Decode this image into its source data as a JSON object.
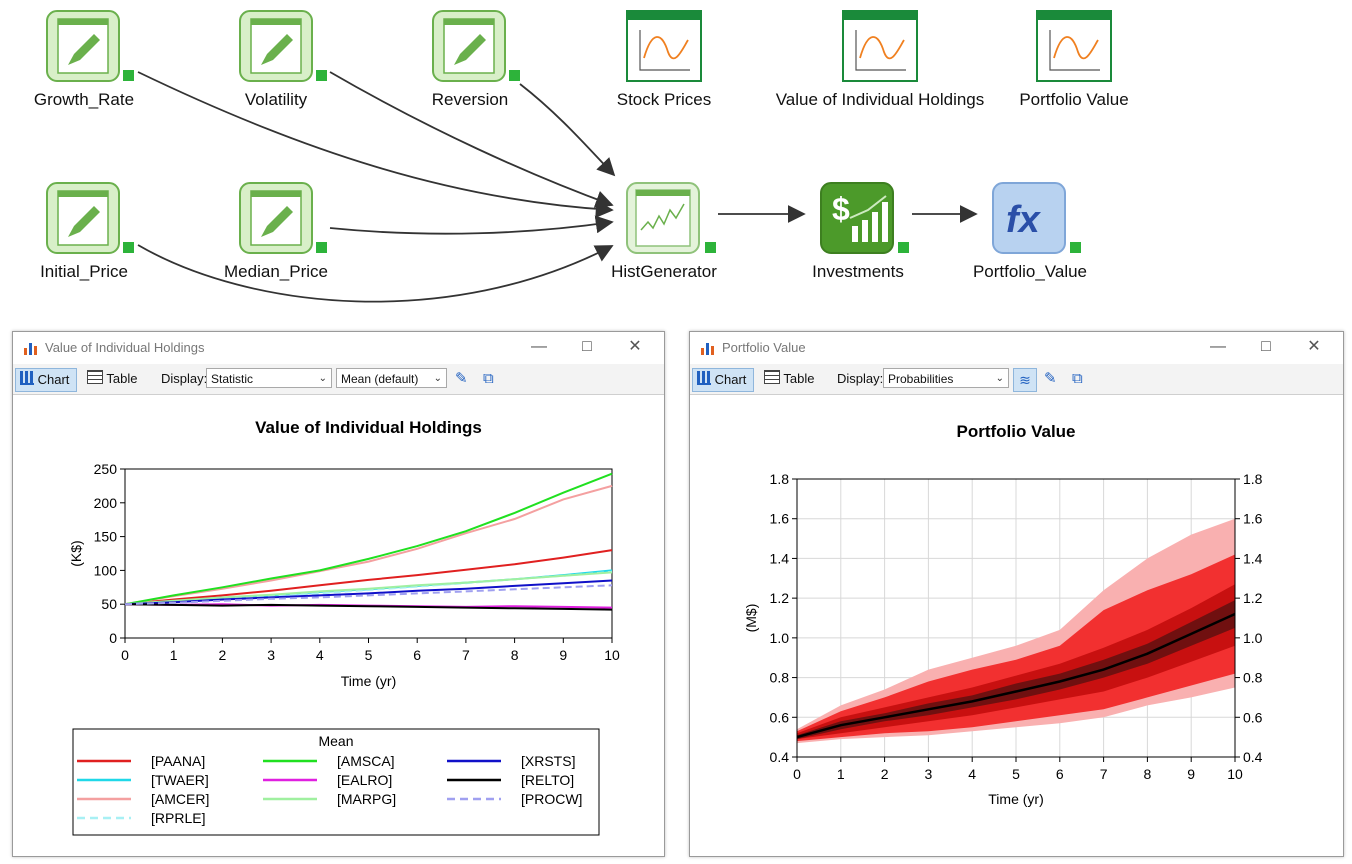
{
  "diagram": {
    "nodes": [
      {
        "id": "growth_rate",
        "label": "Growth_Rate",
        "kind": "input"
      },
      {
        "id": "volatility",
        "label": "Volatility",
        "kind": "input"
      },
      {
        "id": "reversion",
        "label": "Reversion",
        "kind": "input"
      },
      {
        "id": "stock_prices",
        "label": "Stock Prices",
        "kind": "chart"
      },
      {
        "id": "value_holdings",
        "label": "Value of Individual Holdings",
        "kind": "chart"
      },
      {
        "id": "portfolio_value_chart",
        "label": "Portfolio Value",
        "kind": "chart"
      },
      {
        "id": "initial_price",
        "label": "Initial_Price",
        "kind": "input"
      },
      {
        "id": "median_price",
        "label": "Median_Price",
        "kind": "input"
      },
      {
        "id": "histgenerator",
        "label": "HistGenerator",
        "kind": "generator"
      },
      {
        "id": "investments",
        "label": "Investments",
        "kind": "finance"
      },
      {
        "id": "portfolio_value",
        "label": "Portfolio_Value",
        "kind": "function"
      }
    ]
  },
  "left_window": {
    "title": "Value of Individual Holdings",
    "chart_button": "Chart",
    "table_button": "Table",
    "display_label": "Display:",
    "display_value": "Statistic",
    "stat_value": "Mean (default)"
  },
  "right_window": {
    "title": "Portfolio Value",
    "chart_button": "Chart",
    "table_button": "Table",
    "display_label": "Display:",
    "display_value": "Probabilities"
  },
  "colors": {
    "node_green": "#6ab04c",
    "chart_green": "#1a8a3a",
    "fx_blue": "#a9c8ec",
    "toolbar_active": "#cfe3f5"
  },
  "chart_data": [
    {
      "type": "line",
      "title": "Value of Individual Holdings",
      "xlabel": "Time (yr)",
      "ylabel": "(K$)",
      "xlim": [
        0,
        10
      ],
      "ylim": [
        0,
        250
      ],
      "xticks": [
        "0",
        "1",
        "2",
        "3",
        "4",
        "5",
        "6",
        "7",
        "8",
        "9",
        "10"
      ],
      "yticks": [
        "0",
        "50",
        "100",
        "150",
        "200",
        "250"
      ],
      "grid": false,
      "legend_title": "Mean",
      "legend_position": "bottom",
      "x": [
        0,
        1,
        2,
        3,
        4,
        5,
        6,
        7,
        8,
        9,
        10
      ],
      "series": [
        {
          "name": "[PAANA]",
          "color": "#e02020",
          "dash": false,
          "values": [
            50,
            57,
            63,
            70,
            78,
            86,
            93,
            101,
            109,
            119,
            130
          ]
        },
        {
          "name": "[TWAER]",
          "color": "#20d8e8",
          "dash": false,
          "values": [
            50,
            54,
            59,
            63,
            68,
            72,
            77,
            82,
            87,
            93,
            100
          ]
        },
        {
          "name": "[AMCER]",
          "color": "#f4a0a0",
          "dash": false,
          "values": [
            50,
            62,
            73,
            85,
            99,
            113,
            132,
            155,
            176,
            205,
            225
          ]
        },
        {
          "name": "[RPRLE]",
          "color": "#a8f0f4",
          "dash": true,
          "values": [
            50,
            54,
            58,
            62,
            66,
            71,
            76,
            81,
            87,
            92,
            98
          ]
        },
        {
          "name": "[AMSCA]",
          "color": "#20e020",
          "dash": false,
          "values": [
            50,
            63,
            75,
            88,
            100,
            117,
            136,
            158,
            185,
            215,
            243
          ]
        },
        {
          "name": "[EALRO]",
          "color": "#e020e0",
          "dash": false,
          "values": [
            50,
            49,
            50,
            48,
            49,
            48,
            47,
            46,
            47,
            46,
            45
          ]
        },
        {
          "name": "[MARPG]",
          "color": "#a0f0a0",
          "dash": false,
          "values": [
            50,
            55,
            60,
            64,
            69,
            73,
            78,
            82,
            87,
            92,
            97
          ]
        },
        {
          "name": "[XRSTS]",
          "color": "#1010c8",
          "dash": false,
          "values": [
            50,
            53,
            57,
            60,
            63,
            66,
            70,
            73,
            77,
            81,
            85
          ]
        },
        {
          "name": "[RELTO]",
          "color": "#000000",
          "dash": false,
          "values": [
            50,
            49,
            48,
            49,
            48,
            47,
            46,
            45,
            44,
            43,
            42
          ]
        },
        {
          "name": "[PROCW]",
          "color": "#a0a0f0",
          "dash": true,
          "values": [
            50,
            52,
            55,
            58,
            60,
            63,
            66,
            69,
            72,
            75,
            78
          ]
        }
      ]
    },
    {
      "type": "area",
      "title": "Portfolio Value",
      "xlabel": "Time (yr)",
      "ylabel": "(M$)",
      "xlim": [
        0,
        10
      ],
      "ylim": [
        0.4,
        1.8
      ],
      "xticks": [
        "0",
        "1",
        "2",
        "3",
        "4",
        "5",
        "6",
        "7",
        "8",
        "9",
        "10"
      ],
      "yticks": [
        "0.4",
        "0.6",
        "0.8",
        "1.0",
        "1.2",
        "1.4",
        "1.6",
        "1.8"
      ],
      "grid": true,
      "x": [
        0,
        1,
        2,
        3,
        4,
        5,
        6,
        7,
        8,
        9,
        10
      ],
      "median": [
        0.5,
        0.56,
        0.6,
        0.64,
        0.68,
        0.73,
        0.78,
        0.84,
        0.92,
        1.02,
        1.12
      ],
      "bands": [
        {
          "color": "#f9b0b0",
          "low": [
            0.47,
            0.49,
            0.5,
            0.51,
            0.53,
            0.55,
            0.57,
            0.6,
            0.66,
            0.7,
            0.75
          ],
          "high": [
            0.54,
            0.66,
            0.74,
            0.84,
            0.9,
            0.96,
            1.04,
            1.24,
            1.4,
            1.52,
            1.6
          ]
        },
        {
          "color": "#f23030",
          "low": [
            0.48,
            0.5,
            0.52,
            0.53,
            0.55,
            0.58,
            0.61,
            0.64,
            0.7,
            0.76,
            0.82
          ],
          "high": [
            0.53,
            0.63,
            0.7,
            0.78,
            0.84,
            0.89,
            0.96,
            1.14,
            1.24,
            1.32,
            1.42
          ]
        },
        {
          "color": "#c81010",
          "low": [
            0.49,
            0.52,
            0.55,
            0.58,
            0.61,
            0.65,
            0.69,
            0.73,
            0.8,
            0.88,
            0.96
          ],
          "high": [
            0.52,
            0.6,
            0.65,
            0.7,
            0.75,
            0.81,
            0.87,
            0.95,
            1.04,
            1.15,
            1.27
          ]
        },
        {
          "color": "#701010",
          "low": [
            0.49,
            0.54,
            0.58,
            0.61,
            0.65,
            0.69,
            0.74,
            0.8,
            0.87,
            0.96,
            1.05
          ],
          "high": [
            0.51,
            0.58,
            0.62,
            0.67,
            0.71,
            0.77,
            0.82,
            0.89,
            0.97,
            1.08,
            1.19
          ]
        }
      ]
    }
  ]
}
